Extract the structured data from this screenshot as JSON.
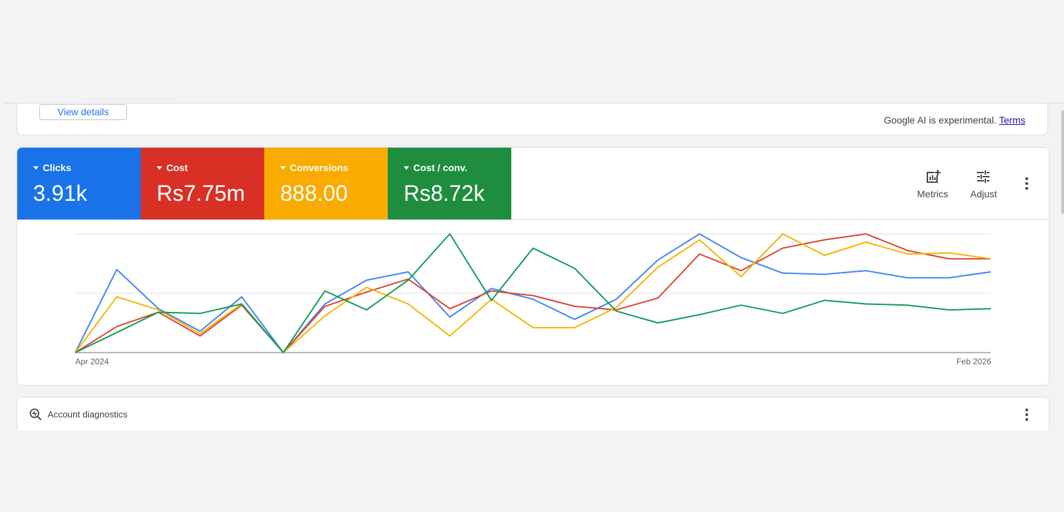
{
  "ai_card": {
    "view_details_label": "View details",
    "note_text": "Google AI is experimental.",
    "terms_link": "Terms"
  },
  "summary": {
    "tiles": [
      {
        "label": "Clicks",
        "value": "3.91k",
        "color": "#1a73e8"
      },
      {
        "label": "Cost",
        "value": "Rs7.75m",
        "color": "#d93025"
      },
      {
        "label": "Conversions",
        "value": "888.00",
        "color": "#f9ab00"
      },
      {
        "label": "Cost / conv.",
        "value": "Rs8.72k",
        "color": "#1e8e3e"
      }
    ],
    "tools": {
      "metrics_label": "Metrics",
      "adjust_label": "Adjust"
    }
  },
  "chart_data": {
    "type": "line",
    "x_labels": [
      "Apr 2024",
      "Feb 2026"
    ],
    "y_range": [
      0,
      100
    ],
    "grid": true,
    "series": [
      {
        "name": "Clicks",
        "color": "#4285f4",
        "values": [
          0,
          70,
          37,
          18,
          47,
          0,
          41,
          61,
          68,
          30,
          54,
          45,
          28,
          45,
          78,
          100,
          80,
          67,
          66,
          69,
          63,
          63,
          68
        ]
      },
      {
        "name": "Cost",
        "color": "#db4437",
        "values": [
          0,
          22,
          34,
          14,
          40,
          0,
          39,
          51,
          62,
          37,
          52,
          48,
          39,
          36,
          46,
          83,
          69,
          88,
          95,
          100,
          86,
          79,
          79
        ]
      },
      {
        "name": "Conversions",
        "color": "#f4b400",
        "values": [
          0,
          47,
          36,
          16,
          41,
          0,
          31,
          55,
          41,
          14,
          45,
          21,
          21,
          38,
          72,
          95,
          64,
          100,
          82,
          93,
          83,
          84,
          79
        ]
      },
      {
        "name": "Cost / conv.",
        "color": "#0f9d58",
        "values": [
          0,
          17,
          34,
          33,
          41,
          0,
          52,
          36,
          61,
          100,
          44,
          88,
          71,
          35,
          25,
          32,
          40,
          33,
          44,
          41,
          40,
          36,
          37
        ]
      }
    ]
  },
  "diagnostics": {
    "title": "Account diagnostics"
  }
}
